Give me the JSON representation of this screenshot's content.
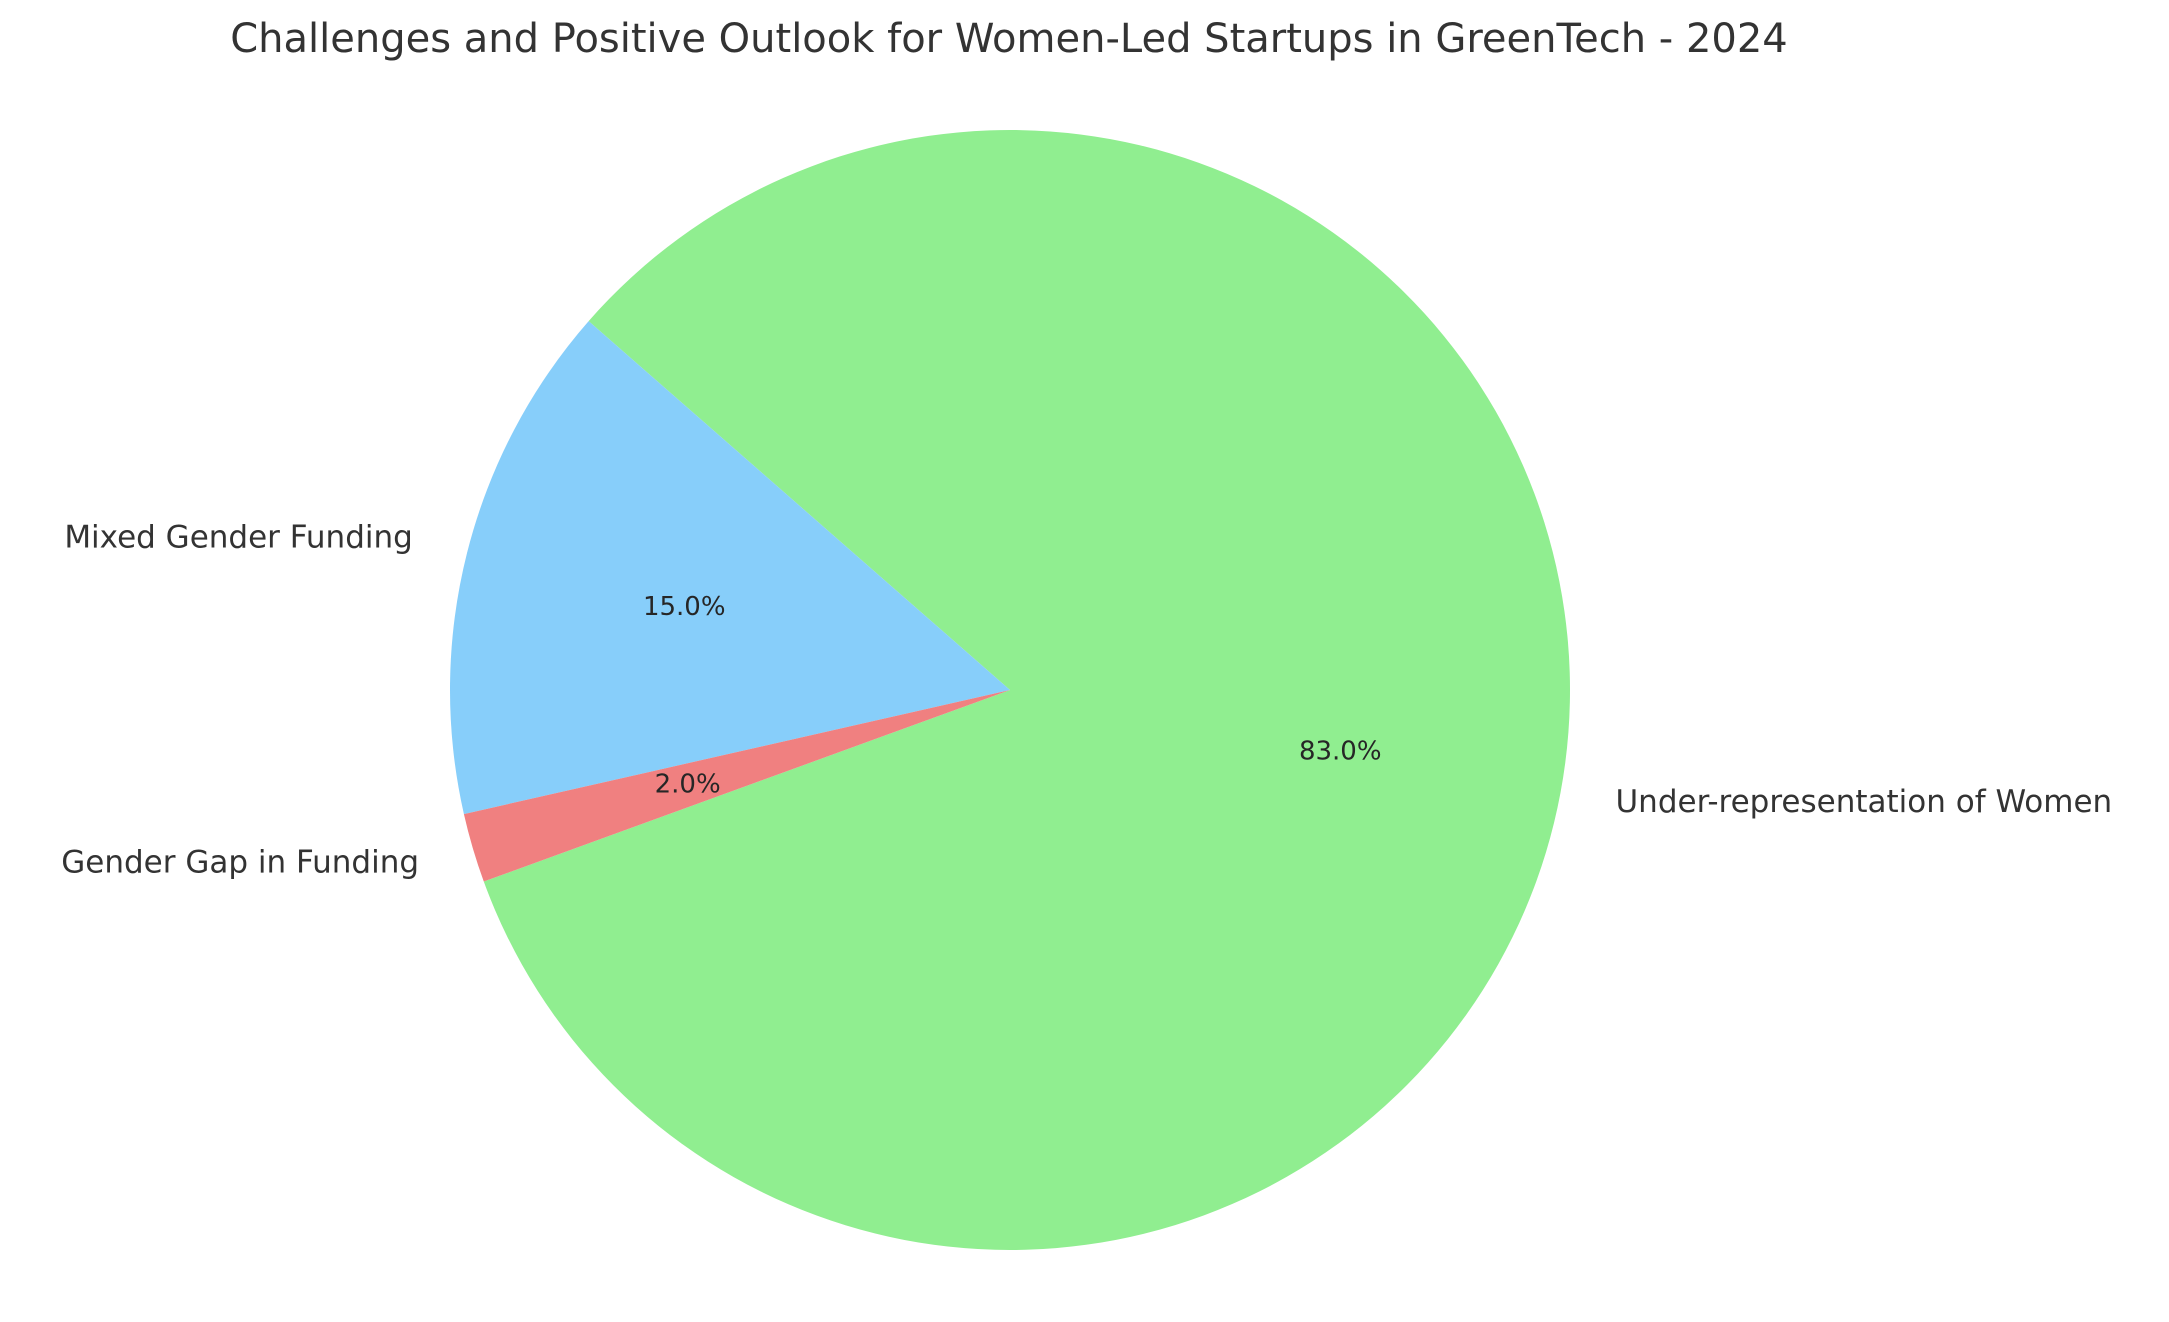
{
  "chart_data": {
    "type": "pie",
    "title": "Challenges and Positive Outlook for Women-Led Startups in GreenTech - 2024",
    "start_angle_deg": 200,
    "direction": "counterclockwise",
    "slices": [
      {
        "label": "Under-representation of Women",
        "value": 83.0,
        "pct_label": "83.0%",
        "color": "#90EE90"
      },
      {
        "label": "Mixed Gender Funding",
        "value": 15.0,
        "pct_label": "15.0%",
        "color": "#87CEFA"
      },
      {
        "label": "Gender Gap in Funding",
        "value": 2.0,
        "pct_label": "2.0%",
        "color": "#F08080"
      }
    ]
  }
}
